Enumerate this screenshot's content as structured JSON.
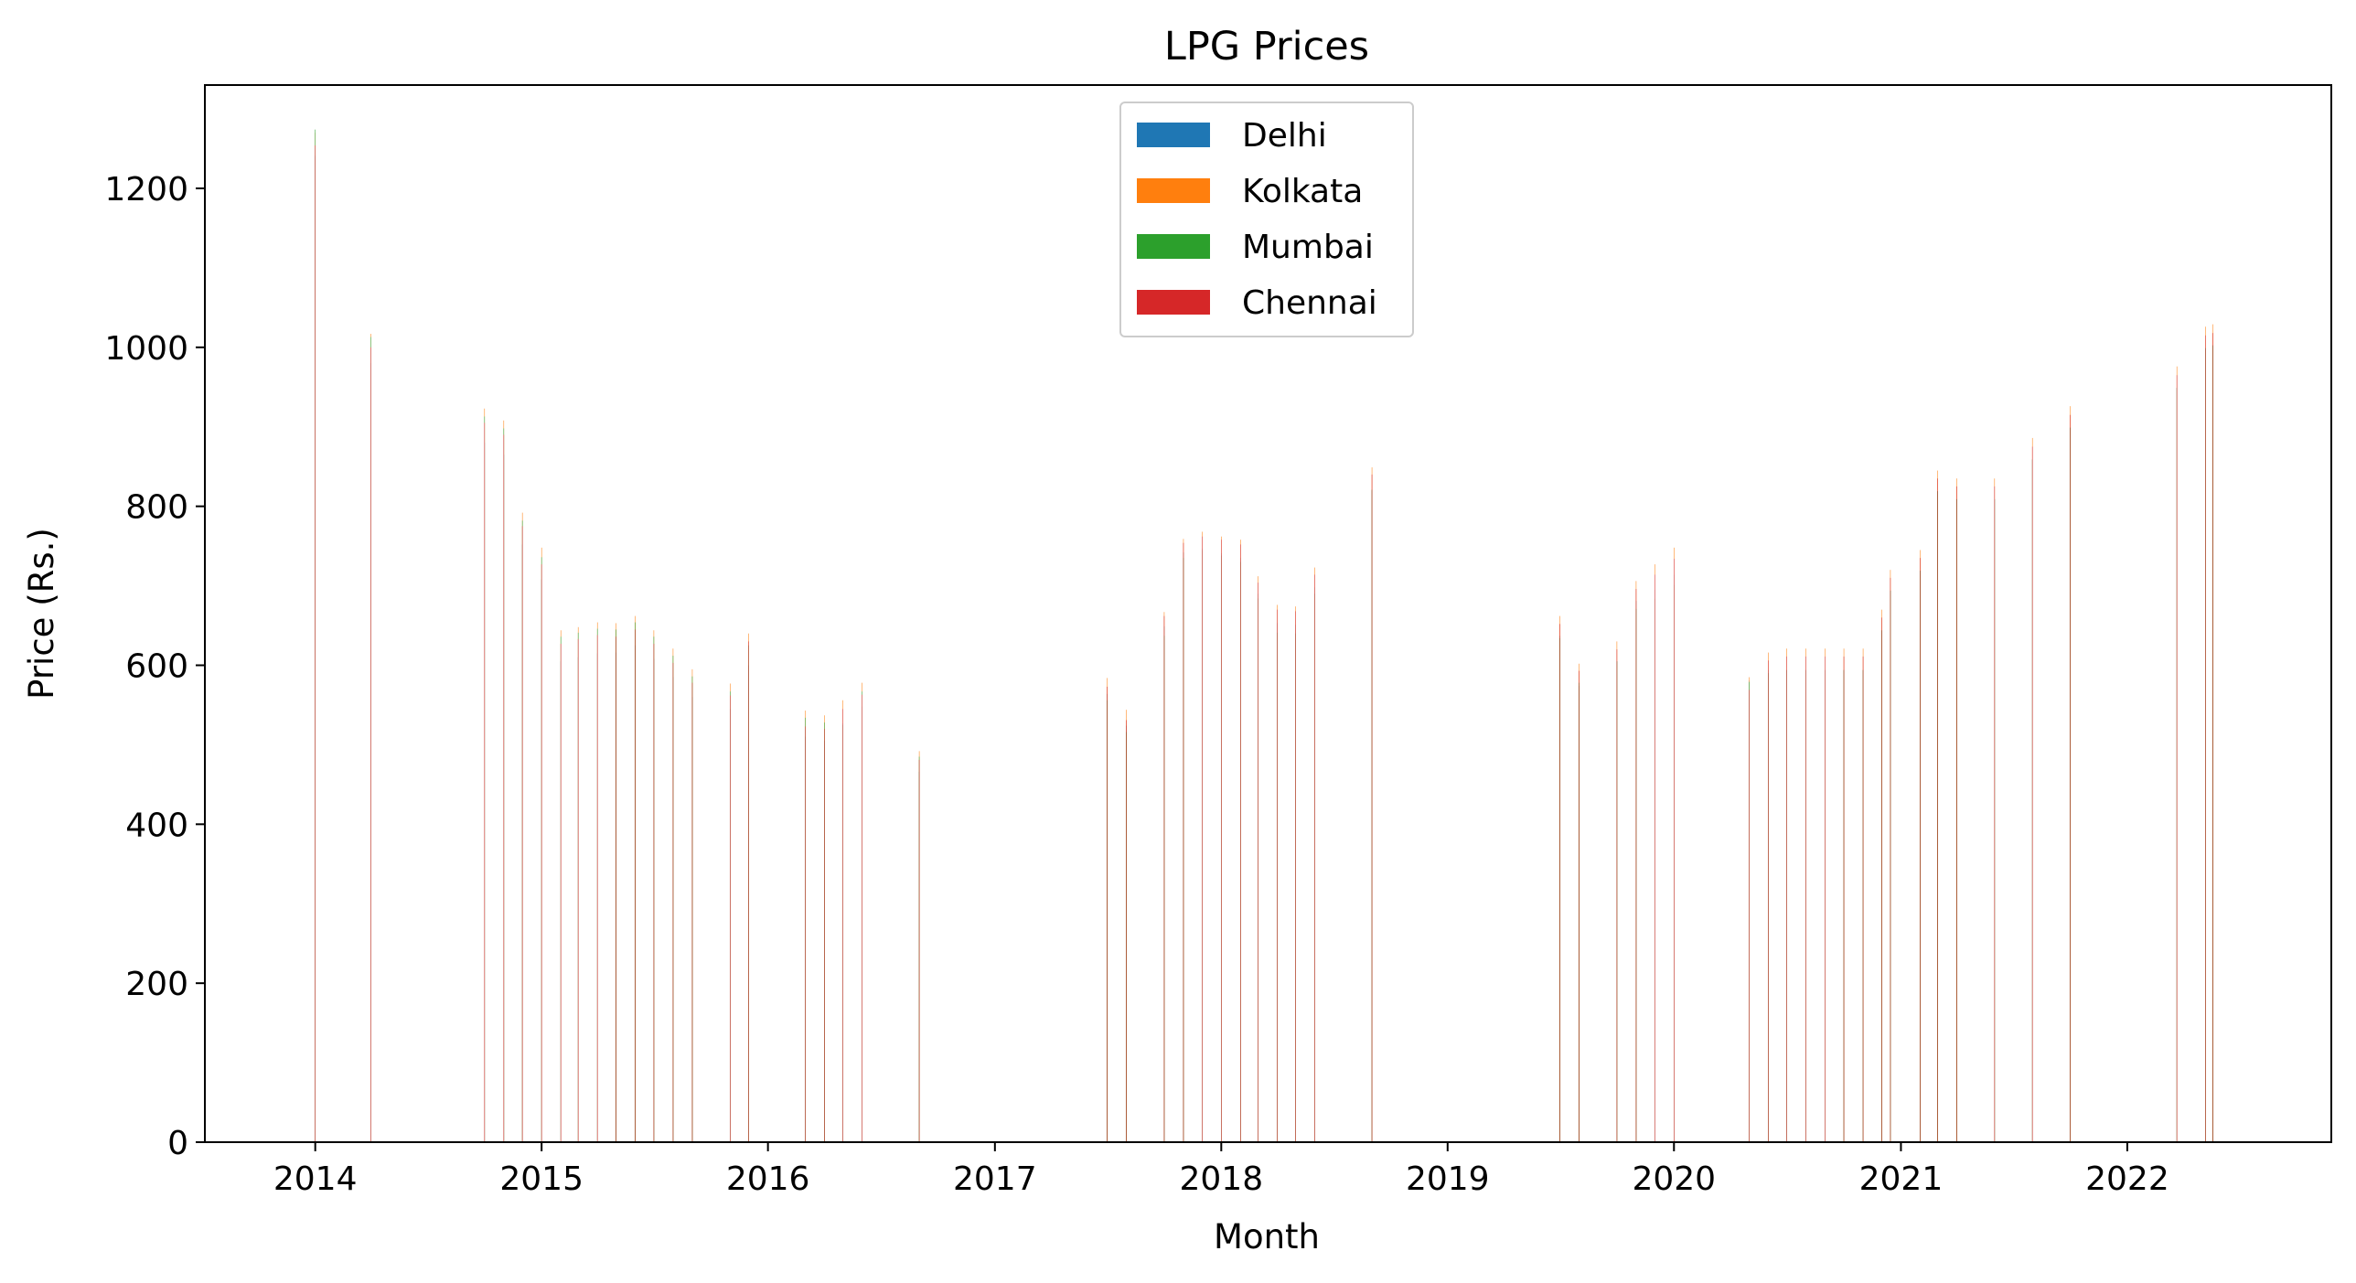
{
  "chart_data": {
    "type": "bar",
    "title": "LPG Prices",
    "xlabel": "Month",
    "ylabel": "Price (Rs.)",
    "ylim": [
      0,
      1330
    ],
    "xlim": [
      "2013-07-07",
      "2022-11-26"
    ],
    "yticks": [
      0,
      200,
      400,
      600,
      800,
      1000,
      1200
    ],
    "xticks": [
      "2014",
      "2015",
      "2016",
      "2017",
      "2018",
      "2019",
      "2020",
      "2021",
      "2022"
    ],
    "grid": false,
    "legend": {
      "placement": "upper center",
      "entries": [
        "Delhi",
        "Kolkata",
        "Mumbai",
        "Chennai"
      ]
    },
    "colors": {
      "Delhi": "#1f77b4",
      "Kolkata": "#ff7f0e",
      "Mumbai": "#2ca02c",
      "Chennai": "#d62728"
    },
    "x": [
      "2014-01-01",
      "2014-04-01",
      "2014-10-01",
      "2014-11-01",
      "2014-12-01",
      "2015-01-01",
      "2015-02-01",
      "2015-03-01",
      "2015-04-01",
      "2015-05-01",
      "2015-06-01",
      "2015-07-01",
      "2015-08-01",
      "2015-09-01",
      "2015-11-01",
      "2015-12-01",
      "2016-03-01",
      "2016-04-01",
      "2016-05-01",
      "2016-06-01",
      "2016-09-01",
      "2017-07-01",
      "2017-08-01",
      "2017-10-01",
      "2017-11-01",
      "2017-12-01",
      "2018-01-01",
      "2018-02-01",
      "2018-03-01",
      "2018-04-01",
      "2018-05-01",
      "2018-06-01",
      "2018-09-01",
      "2019-07-01",
      "2019-08-01",
      "2019-10-01",
      "2019-11-01",
      "2019-12-01",
      "2020-01-01",
      "2020-05-01",
      "2020-06-01",
      "2020-07-01",
      "2020-08-01",
      "2020-09-01",
      "2020-10-01",
      "2020-11-01",
      "2020-12-01",
      "2020-12-15",
      "2021-02-01",
      "2021-03-01",
      "2021-04-01",
      "2021-06-01",
      "2021-08-01",
      "2021-10-01",
      "2022-03-22",
      "2022-05-07",
      "2022-05-19"
    ],
    "series": [
      {
        "name": "Delhi",
        "values": [
          1241,
          980,
          880,
          865,
          752,
          708,
          605,
          610,
          615,
          616,
          625,
          608,
          585,
          560,
          545,
          600,
          510,
          505,
          527,
          548,
          466,
          564,
          524,
          649,
          742,
          747,
          741,
          735,
          690,
          653,
          651,
          698,
          820,
          637,
          574,
          605,
          681,
          695,
          714,
          581,
          594,
          594,
          594,
          594,
          594,
          594,
          644,
          694,
          719,
          819,
          809,
          809,
          859,
          899,
          949,
          999,
          1003
        ]
      },
      {
        "name": "Kolkata",
        "values": [
          1270,
          1017,
          923,
          908,
          792,
          748,
          644,
          648,
          654,
          653,
          662,
          644,
          621,
          595,
          577,
          640,
          543,
          537,
          556,
          578,
          492,
          584,
          544,
          667,
          759,
          768,
          762,
          758,
          712,
          676,
          674,
          723,
          849,
          662,
          602,
          630,
          706,
          727,
          748,
          585,
          616,
          621,
          621,
          621,
          621,
          621,
          670,
          720,
          745,
          845,
          835,
          835,
          886,
          926,
          976,
          1026,
          1029
        ]
      },
      {
        "name": "Mumbai",
        "values": [
          1274,
          1013,
          913,
          898,
          782,
          736,
          636,
          641,
          646,
          645,
          654,
          636,
          612,
          586,
          567,
          625,
          534,
          528,
          525,
          567,
          485,
          556,
          516,
          637,
          735,
          745,
          738,
          730,
          684,
          641,
          640,
          690,
          821,
          634,
          578,
          605,
          671,
          684,
          701,
          579,
          590,
          594,
          594,
          594,
          594,
          594,
          644,
          694,
          719,
          819,
          809,
          809,
          859,
          899,
          949,
          999,
          1002
        ]
      },
      {
        "name": "Chennai",
        "values": [
          1254,
          1000,
          905,
          890,
          775,
          727,
          627,
          633,
          638,
          636,
          645,
          627,
          603,
          578,
          562,
          630,
          523,
          520,
          545,
          563,
          481,
          573,
          531,
          662,
          754,
          762,
          758,
          752,
          704,
          670,
          668,
          714,
          840,
          652,
          593,
          620,
          696,
          714,
          734,
          569,
          606,
          611,
          611,
          611,
          611,
          611,
          660,
          710,
          735,
          835,
          825,
          825,
          875,
          915,
          965,
          1015,
          1018
        ]
      }
    ]
  }
}
